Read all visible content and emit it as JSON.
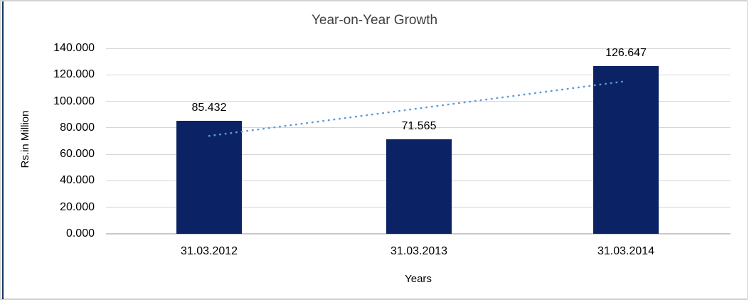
{
  "chart_data": {
    "type": "bar",
    "title": "Year-on-Year Growth",
    "xlabel": "Years",
    "ylabel": "Rs.in Million",
    "categories": [
      "31.03.2012",
      "31.03.2013",
      "31.03.2014"
    ],
    "values": [
      85.432,
      71.565,
      126.647
    ],
    "value_labels": [
      "85.432",
      "71.565",
      "126.647"
    ],
    "ylim": [
      0,
      140
    ],
    "ytick_step": 20,
    "ytick_labels": [
      "140.000",
      "120.000",
      "100.000",
      "80.000",
      "60.000",
      "40.000",
      "20.000",
      "0.000"
    ],
    "grid": true,
    "legend": "none",
    "bar_color": "#0b2364",
    "trendline": {
      "type": "linear",
      "style": "dotted",
      "color": "#5b9bd5",
      "start_value": 73.9,
      "end_value": 115.2
    },
    "frame_border_color": "#d2d2d2",
    "frame_accent_color": "#17375e"
  }
}
